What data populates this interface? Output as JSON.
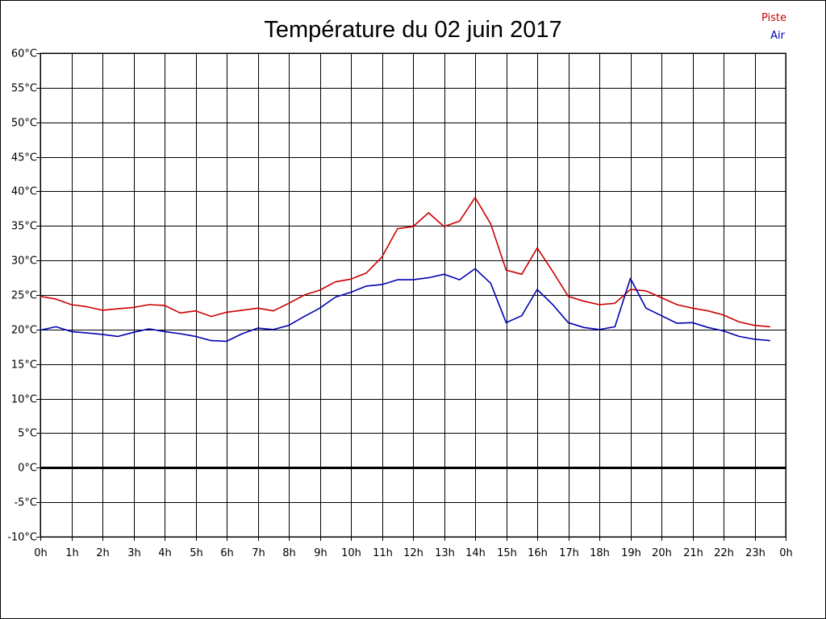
{
  "chart_data": {
    "type": "line",
    "title": "Température du 02 juin 2017",
    "xlabel": "",
    "ylabel": "",
    "ylim": [
      -10,
      60
    ],
    "y_ticks": [
      60,
      55,
      50,
      45,
      40,
      35,
      30,
      25,
      20,
      15,
      10,
      5,
      0,
      -5,
      -10
    ],
    "y_tick_labels": [
      "60°C",
      "55°C",
      "50°C",
      "45°C",
      "40°C",
      "35°C",
      "30°C",
      "25°C",
      "20°C",
      "15°C",
      "10°C",
      "5°C",
      "0°C",
      "-5°C",
      "-10°C"
    ],
    "xlim": [
      0,
      24
    ],
    "x_tick_labels": [
      "0h",
      "1h",
      "2h",
      "3h",
      "4h",
      "5h",
      "6h",
      "7h",
      "8h",
      "9h",
      "10h",
      "11h",
      "12h",
      "13h",
      "14h",
      "15h",
      "16h",
      "17h",
      "18h",
      "19h",
      "20h",
      "21h",
      "22h",
      "23h",
      "0h"
    ],
    "grid": true,
    "zero_line": true,
    "legend": {
      "position": "top-right"
    },
    "x": [
      0,
      0.5,
      1,
      1.5,
      2,
      2.5,
      3,
      3.5,
      4,
      4.5,
      5,
      5.5,
      6,
      6.5,
      7,
      7.5,
      8,
      8.5,
      9,
      9.5,
      10,
      10.5,
      11,
      11.5,
      12,
      12.5,
      13,
      13.5,
      14,
      14.5,
      15,
      15.5,
      16,
      16.5,
      17,
      17.5,
      18,
      18.5,
      19,
      19.5,
      20,
      20.5,
      21,
      21.5,
      22,
      22.5,
      23,
      23.5
    ],
    "series": [
      {
        "name": "Piste",
        "color": "#cc0000",
        "values": [
          24.8,
          24.4,
          23.6,
          23.3,
          22.8,
          23.0,
          23.2,
          23.6,
          23.5,
          22.4,
          22.7,
          21.9,
          22.5,
          22.8,
          23.1,
          22.7,
          23.8,
          25.0,
          25.7,
          26.9,
          27.3,
          28.2,
          30.5,
          34.6,
          34.9,
          36.9,
          34.9,
          35.7,
          39.1,
          35.3,
          28.6,
          28.0,
          31.8,
          28.4,
          24.8,
          24.1,
          23.6,
          23.8,
          25.8,
          25.6,
          24.6,
          23.6,
          23.1,
          22.7,
          22.1,
          21.1,
          20.6,
          20.4
        ]
      },
      {
        "name": "Air",
        "color": "#0000b4",
        "values": [
          19.9,
          20.4,
          19.7,
          19.5,
          19.3,
          19.0,
          19.6,
          20.1,
          19.7,
          19.4,
          19.0,
          18.4,
          18.3,
          19.4,
          20.2,
          20.0,
          20.6,
          21.9,
          23.1,
          24.7,
          25.4,
          26.3,
          26.5,
          27.2,
          27.2,
          27.5,
          28.0,
          27.2,
          28.8,
          26.7,
          21.0,
          22.0,
          25.8,
          23.6,
          21.0,
          20.3,
          20.0,
          20.4,
          27.4,
          23.1,
          22.0,
          20.9,
          21.0,
          20.3,
          19.8,
          19.0,
          18.6,
          18.4
        ]
      }
    ]
  }
}
